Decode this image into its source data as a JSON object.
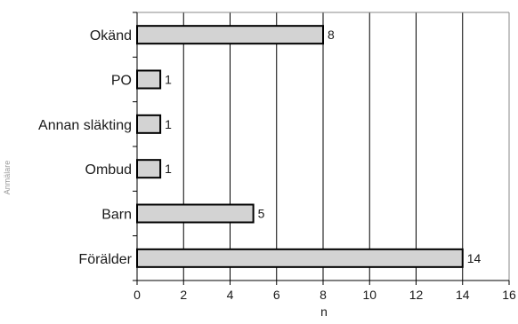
{
  "chart_data": {
    "type": "bar",
    "orientation": "horizontal",
    "categories": [
      "Okänd",
      "PO",
      "Annan släkting",
      "Ombud",
      "Barn",
      "Förälder"
    ],
    "values": [
      8,
      1,
      1,
      1,
      5,
      14
    ],
    "xlabel": "n",
    "ylabel": "Anmälare",
    "xlim": [
      0,
      16
    ],
    "xticks": [
      0,
      2,
      4,
      6,
      8,
      10,
      12,
      14,
      16
    ],
    "grid": "vertical",
    "legend": "none",
    "bar_fill": "#d3d3d3",
    "bar_stroke": "#000000",
    "grid_color": "#000000"
  }
}
